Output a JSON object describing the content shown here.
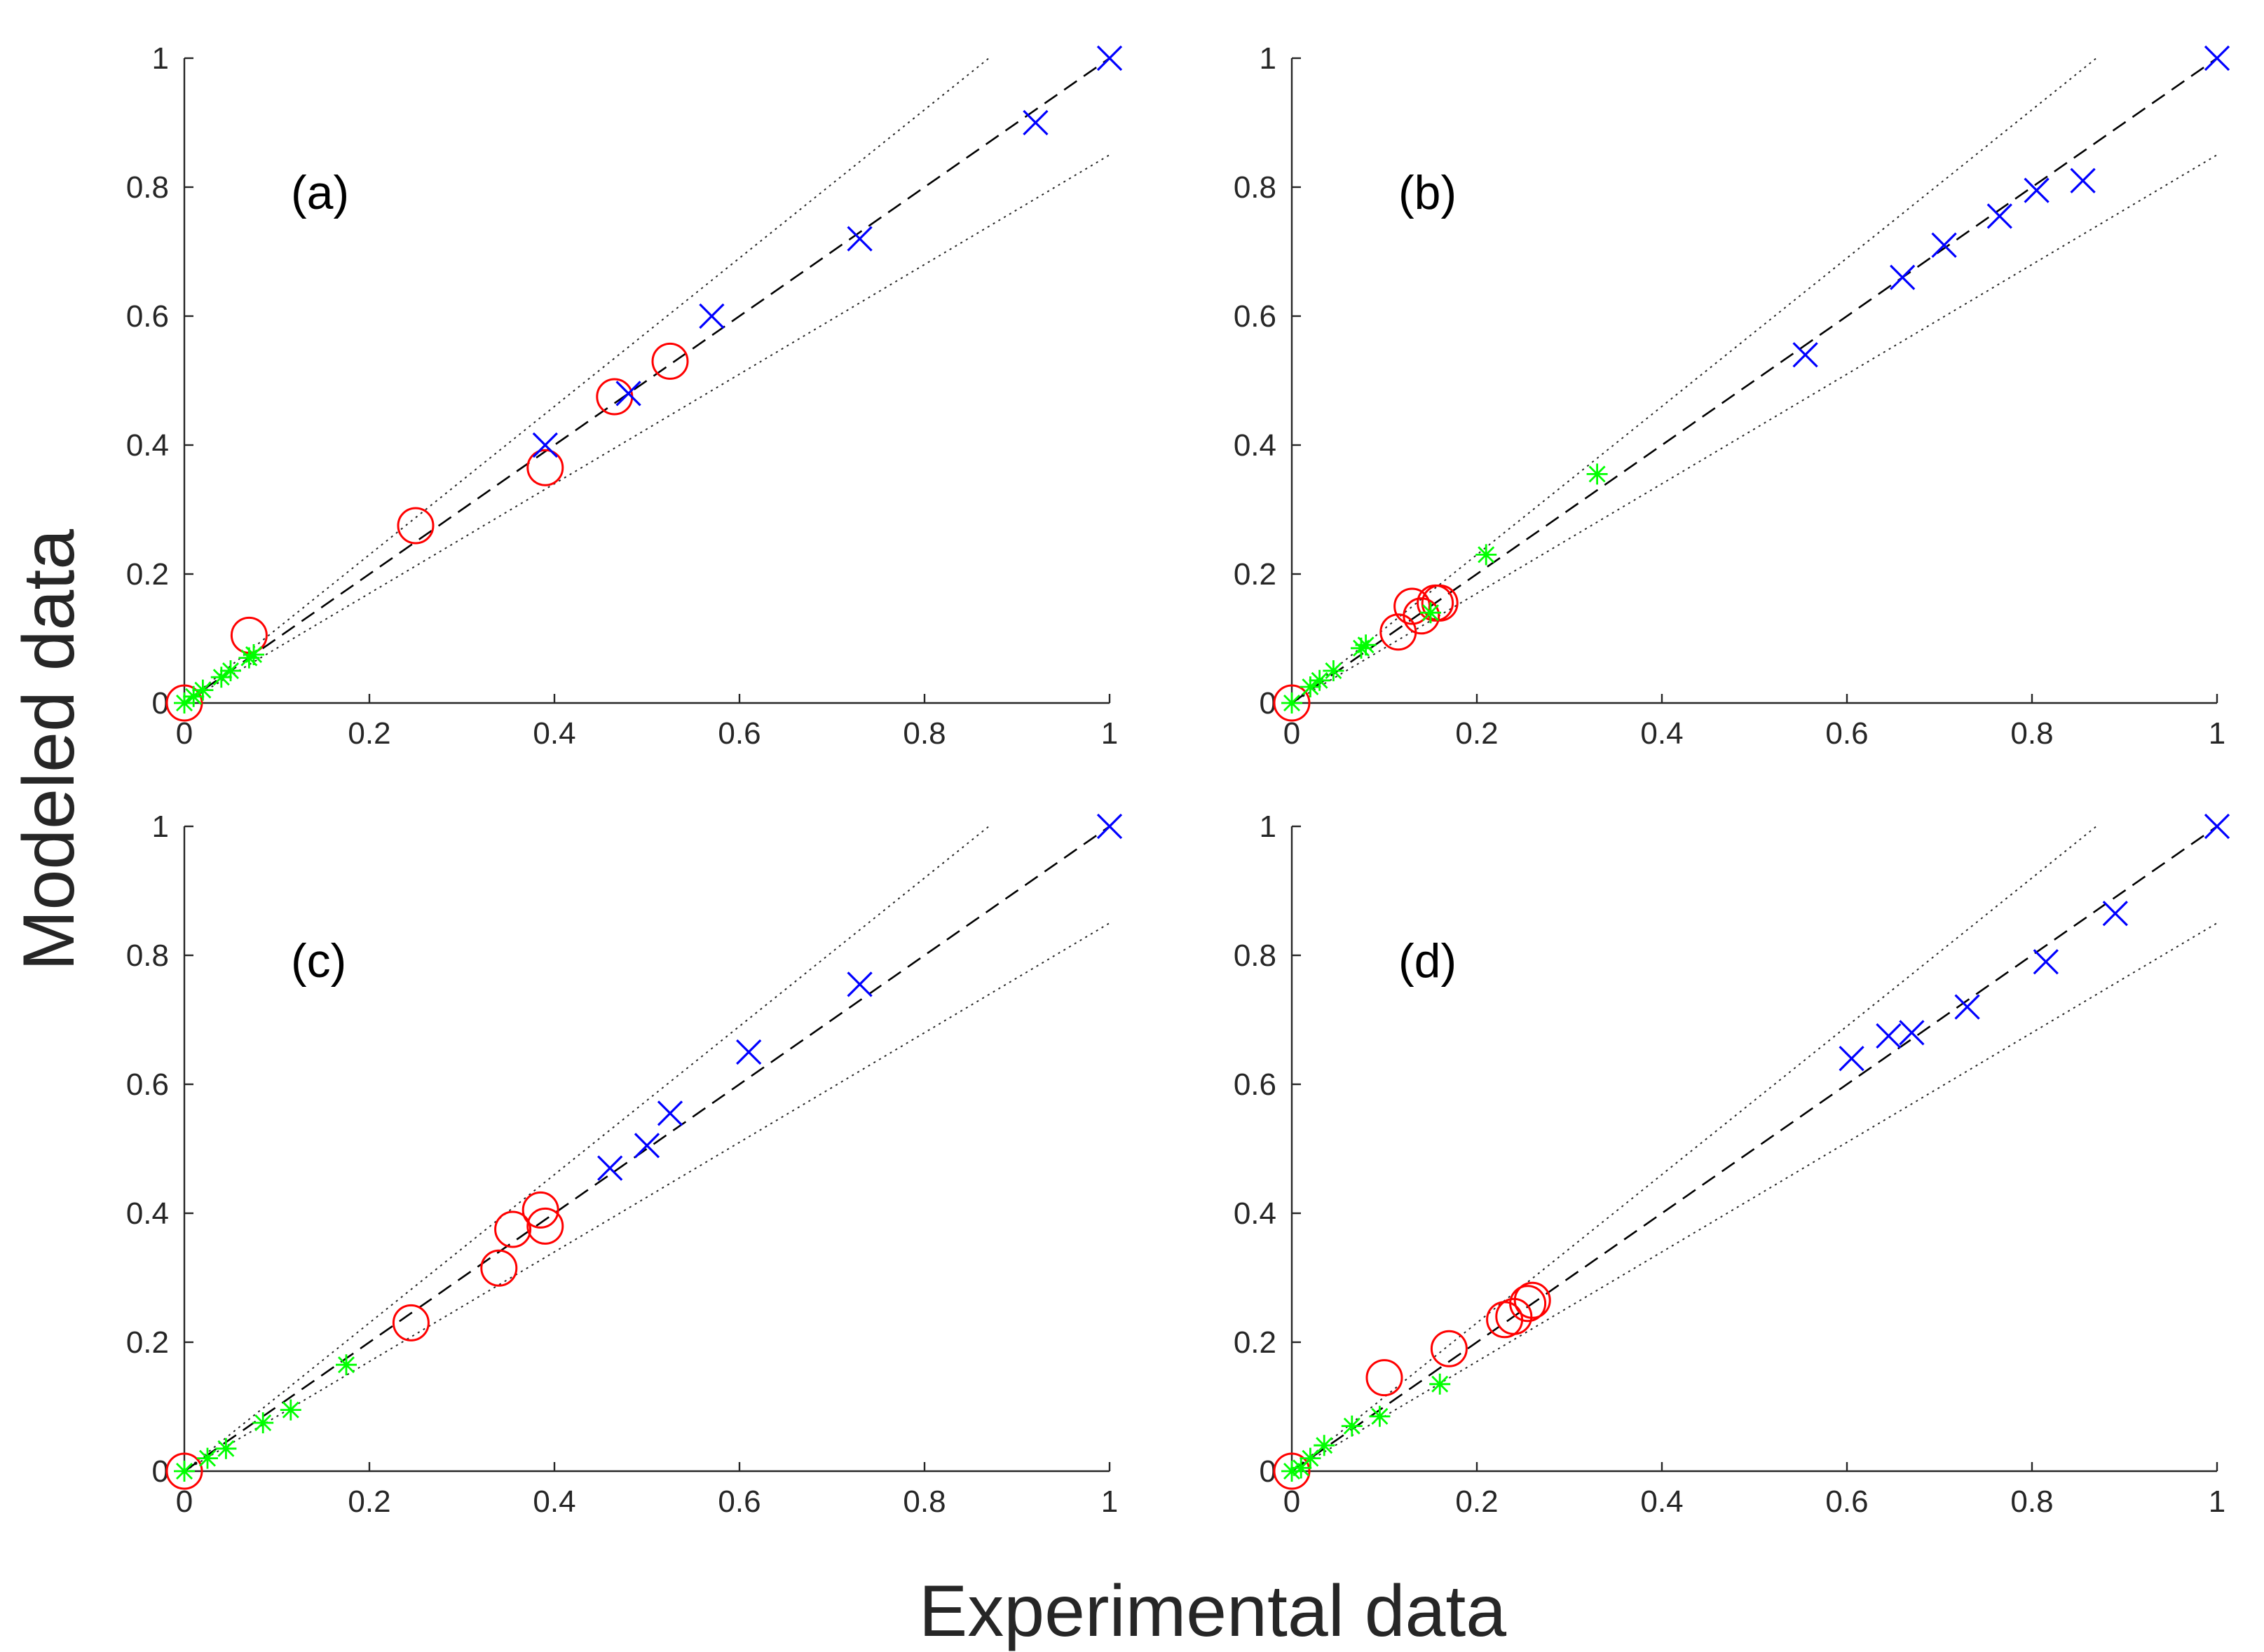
{
  "figure": {
    "xlabel": "Experimental data",
    "ylabel": "Modeled data"
  },
  "colors": {
    "experiment_x": "#0000ff",
    "experiment_star": "#00ff00",
    "experiment_circle": "#ff0000",
    "reference": "#000000",
    "axis": "#262626"
  },
  "chart_data": [
    {
      "type": "scatter",
      "panel": "(a)",
      "xlim": [
        0,
        1
      ],
      "ylim": [
        0,
        1
      ],
      "xticks": [
        "0",
        "0.2",
        "0.4",
        "0.6",
        "0.8",
        "1"
      ],
      "yticks": [
        "0",
        "0.2",
        "0.4",
        "0.6",
        "0.8",
        "1"
      ],
      "reference_lines": [
        {
          "name": "y=x",
          "style": "dashed",
          "slope": 1.0,
          "x_end": 1.0
        },
        {
          "name": "upper bound",
          "style": "dotted",
          "slope": 1.15,
          "x_end": 0.87
        },
        {
          "name": "lower bound",
          "style": "dotted",
          "slope": 0.85,
          "x_end": 1.0
        }
      ],
      "series": [
        {
          "name": "x-markers",
          "marker": "x",
          "color": "#0000ff",
          "points": [
            [
              0.39,
              0.4
            ],
            [
              0.48,
              0.48
            ],
            [
              0.57,
              0.6
            ],
            [
              0.73,
              0.72
            ],
            [
              0.92,
              0.9
            ],
            [
              1.0,
              1.0
            ]
          ]
        },
        {
          "name": "star-markers",
          "marker": "star",
          "color": "#00ff00",
          "points": [
            [
              0.0,
              0.0
            ],
            [
              0.01,
              0.01
            ],
            [
              0.02,
              0.02
            ],
            [
              0.04,
              0.04
            ],
            [
              0.05,
              0.05
            ],
            [
              0.07,
              0.07
            ],
            [
              0.075,
              0.075
            ]
          ]
        },
        {
          "name": "circle-markers",
          "marker": "circle",
          "color": "#ff0000",
          "points": [
            [
              0.0,
              0.0
            ],
            [
              0.07,
              0.105
            ],
            [
              0.25,
              0.275
            ],
            [
              0.39,
              0.365
            ],
            [
              0.465,
              0.475
            ],
            [
              0.525,
              0.53
            ]
          ]
        }
      ]
    },
    {
      "type": "scatter",
      "panel": "(b)",
      "xlim": [
        0,
        1
      ],
      "ylim": [
        0,
        1
      ],
      "xticks": [
        "0",
        "0.2",
        "0.4",
        "0.6",
        "0.8",
        "1"
      ],
      "yticks": [
        "0",
        "0.2",
        "0.4",
        "0.6",
        "0.8",
        "1"
      ],
      "reference_lines": [
        {
          "name": "y=x",
          "style": "dashed",
          "slope": 1.0,
          "x_end": 1.0
        },
        {
          "name": "upper bound",
          "style": "dotted",
          "slope": 1.15,
          "x_end": 0.87
        },
        {
          "name": "lower bound",
          "style": "dotted",
          "slope": 0.85,
          "x_end": 1.0
        }
      ],
      "series": [
        {
          "name": "x-markers",
          "marker": "x",
          "color": "#0000ff",
          "points": [
            [
              0.555,
              0.54
            ],
            [
              0.66,
              0.66
            ],
            [
              0.705,
              0.71
            ],
            [
              0.765,
              0.755
            ],
            [
              0.805,
              0.795
            ],
            [
              0.855,
              0.81
            ],
            [
              1.0,
              1.0
            ]
          ]
        },
        {
          "name": "star-markers",
          "marker": "star",
          "color": "#00ff00",
          "points": [
            [
              0.0,
              0.0
            ],
            [
              0.02,
              0.025
            ],
            [
              0.03,
              0.035
            ],
            [
              0.045,
              0.05
            ],
            [
              0.075,
              0.085
            ],
            [
              0.08,
              0.09
            ],
            [
              0.15,
              0.14
            ],
            [
              0.21,
              0.23
            ],
            [
              0.33,
              0.355
            ]
          ]
        },
        {
          "name": "circle-markers",
          "marker": "circle",
          "color": "#ff0000",
          "points": [
            [
              0.0,
              0.0
            ],
            [
              0.115,
              0.11
            ],
            [
              0.13,
              0.15
            ],
            [
              0.14,
              0.135
            ],
            [
              0.155,
              0.155
            ],
            [
              0.16,
              0.155
            ]
          ]
        }
      ]
    },
    {
      "type": "scatter",
      "panel": "(c)",
      "xlim": [
        0,
        1
      ],
      "ylim": [
        0,
        1
      ],
      "xticks": [
        "0",
        "0.2",
        "0.4",
        "0.6",
        "0.8",
        "1"
      ],
      "yticks": [
        "0",
        "0.2",
        "0.4",
        "0.6",
        "0.8",
        "1"
      ],
      "reference_lines": [
        {
          "name": "y=x",
          "style": "dashed",
          "slope": 1.0,
          "x_end": 1.0
        },
        {
          "name": "upper bound",
          "style": "dotted",
          "slope": 1.15,
          "x_end": 0.87
        },
        {
          "name": "lower bound",
          "style": "dotted",
          "slope": 0.85,
          "x_end": 1.0
        }
      ],
      "series": [
        {
          "name": "x-markers",
          "marker": "x",
          "color": "#0000ff",
          "points": [
            [
              0.46,
              0.47
            ],
            [
              0.5,
              0.505
            ],
            [
              0.525,
              0.555
            ],
            [
              0.61,
              0.65
            ],
            [
              0.73,
              0.755
            ],
            [
              1.0,
              1.0
            ]
          ]
        },
        {
          "name": "star-markers",
          "marker": "star",
          "color": "#00ff00",
          "points": [
            [
              0.0,
              0.0
            ],
            [
              0.025,
              0.02
            ],
            [
              0.045,
              0.035
            ],
            [
              0.085,
              0.075
            ],
            [
              0.115,
              0.095
            ],
            [
              0.175,
              0.165
            ]
          ]
        },
        {
          "name": "circle-markers",
          "marker": "circle",
          "color": "#ff0000",
          "points": [
            [
              0.0,
              0.0
            ],
            [
              0.245,
              0.23
            ],
            [
              0.34,
              0.315
            ],
            [
              0.355,
              0.375
            ],
            [
              0.385,
              0.405
            ],
            [
              0.39,
              0.38
            ]
          ]
        }
      ]
    },
    {
      "type": "scatter",
      "panel": "(d)",
      "xlim": [
        0,
        1
      ],
      "ylim": [
        0,
        1
      ],
      "xticks": [
        "0",
        "0.2",
        "0.4",
        "0.6",
        "0.8",
        "1"
      ],
      "yticks": [
        "0",
        "0.2",
        "0.4",
        "0.6",
        "0.8",
        "1"
      ],
      "reference_lines": [
        {
          "name": "y=x",
          "style": "dashed",
          "slope": 1.0,
          "x_end": 1.0
        },
        {
          "name": "upper bound",
          "style": "dotted",
          "slope": 1.15,
          "x_end": 0.87
        },
        {
          "name": "lower bound",
          "style": "dotted",
          "slope": 0.85,
          "x_end": 1.0
        }
      ],
      "series": [
        {
          "name": "x-markers",
          "marker": "x",
          "color": "#0000ff",
          "points": [
            [
              0.605,
              0.64
            ],
            [
              0.645,
              0.675
            ],
            [
              0.67,
              0.68
            ],
            [
              0.73,
              0.72
            ],
            [
              0.815,
              0.79
            ],
            [
              0.89,
              0.865
            ],
            [
              1.0,
              1.0
            ]
          ]
        },
        {
          "name": "star-markers",
          "marker": "star",
          "color": "#00ff00",
          "points": [
            [
              0.0,
              0.0
            ],
            [
              0.01,
              0.005
            ],
            [
              0.02,
              0.02
            ],
            [
              0.035,
              0.04
            ],
            [
              0.065,
              0.07
            ],
            [
              0.095,
              0.085
            ],
            [
              0.16,
              0.135
            ]
          ]
        },
        {
          "name": "circle-markers",
          "marker": "circle",
          "color": "#ff0000",
          "points": [
            [
              0.0,
              0.0
            ],
            [
              0.1,
              0.145
            ],
            [
              0.17,
              0.19
            ],
            [
              0.23,
              0.235
            ],
            [
              0.24,
              0.24
            ],
            [
              0.255,
              0.26
            ],
            [
              0.26,
              0.265
            ]
          ]
        }
      ]
    }
  ]
}
